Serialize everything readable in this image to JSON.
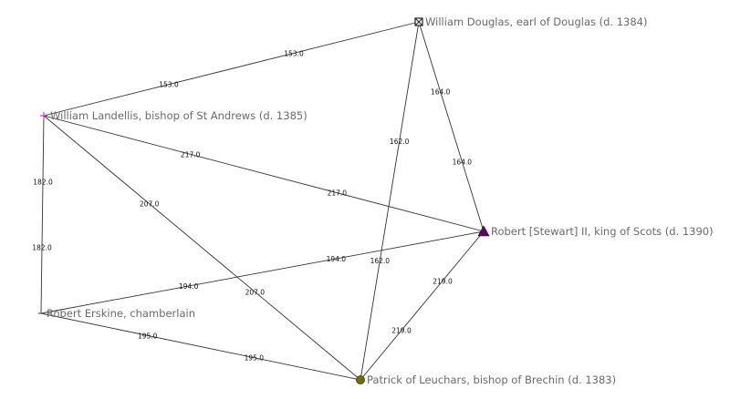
{
  "network": {
    "nodes": [
      {
        "id": "douglas",
        "label": "William Douglas, earl of Douglas (d. 1384)",
        "shape": "boxed-x",
        "color": "#222222"
      },
      {
        "id": "landellis",
        "label": "William Landellis, bishop of St Andrews (d. 1385)",
        "shape": "plus",
        "color": "#c040c0"
      },
      {
        "id": "robert2",
        "label": "Robert [Stewart] II, king of Scots (d. 1390)",
        "shape": "triangle",
        "color": "#5a0a5a"
      },
      {
        "id": "erskine",
        "label": "Robert Erskine, chamberlain",
        "shape": "dash",
        "color": "#555555"
      },
      {
        "id": "leuchars",
        "label": "Patrick of Leuchars, bishop of Brechin (d. 1383)",
        "shape": "circle",
        "color": "#6e6e10"
      }
    ],
    "edges": [
      {
        "from": "landellis",
        "to": "douglas",
        "weight": "153.0"
      },
      {
        "from": "douglas",
        "to": "leuchars",
        "weight": "162.0"
      },
      {
        "from": "douglas",
        "to": "robert2",
        "weight": "164.0"
      },
      {
        "from": "landellis",
        "to": "robert2",
        "weight": "217.0"
      },
      {
        "from": "landellis",
        "to": "leuchars",
        "weight": "207.0"
      },
      {
        "from": "landellis",
        "to": "erskine",
        "weight": "182.0"
      },
      {
        "from": "erskine",
        "to": "robert2",
        "weight": "194.0"
      },
      {
        "from": "erskine",
        "to": "leuchars",
        "weight": "195.0"
      },
      {
        "from": "leuchars",
        "to": "robert2",
        "weight": "219.0"
      }
    ]
  }
}
